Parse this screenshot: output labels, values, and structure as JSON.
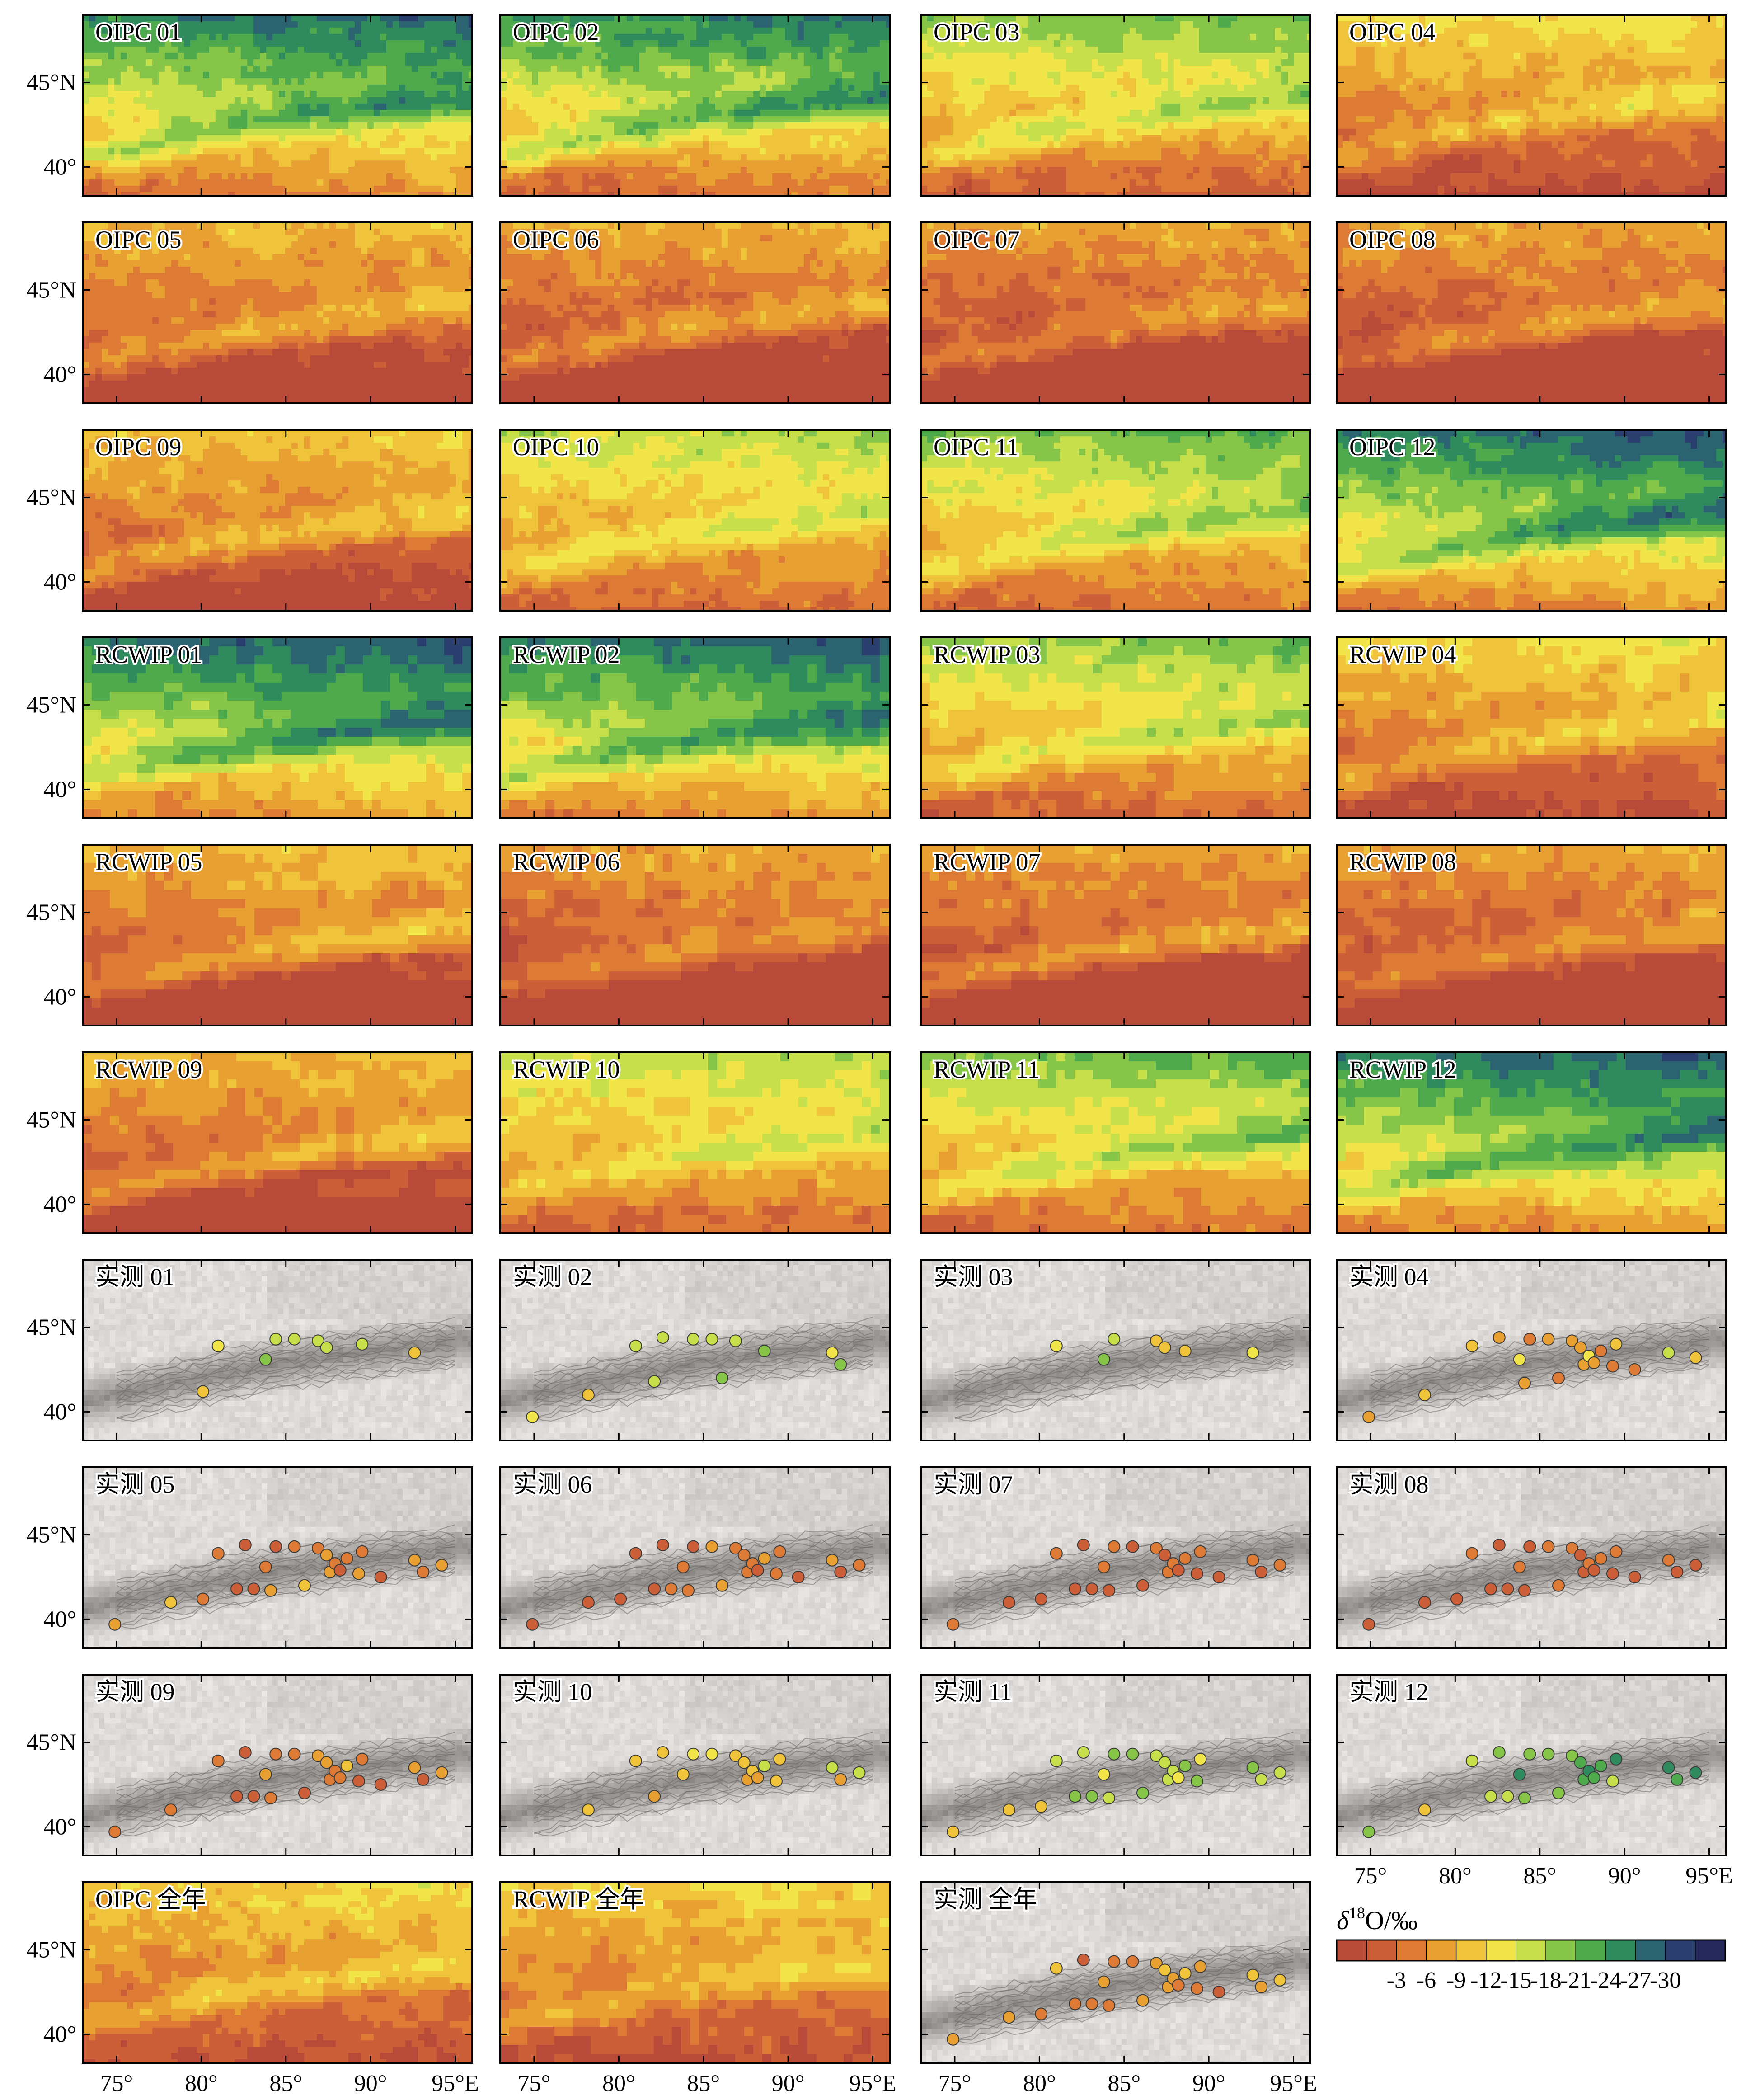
{
  "chart_data": {
    "type": "heatmap",
    "description_units": "δ18O (‰)",
    "region_extent": {
      "lon": [
        73,
        96
      ],
      "lat": [
        38.3,
        49
      ]
    },
    "x_ticks": [
      "75°",
      "80°",
      "85°",
      "90°",
      "95°E"
    ],
    "x_tick_values": [
      75,
      80,
      85,
      90,
      95
    ],
    "y_ticks": [
      "45°N",
      "40°"
    ],
    "y_tick_values": [
      45,
      40
    ],
    "colorbar": {
      "label_italic": "δ",
      "label_sup": "18",
      "label_rest": "O/‰",
      "tick_labels": [
        "-3",
        "-6",
        "-9",
        "-12",
        "-15",
        "-18",
        "-21",
        "-24",
        "-27",
        "-30"
      ],
      "bins": [
        0,
        -3,
        -6,
        -9,
        -12,
        -15,
        -18,
        -21,
        -24,
        -27,
        -30,
        -33
      ],
      "colors": [
        "#b84a3a",
        "#cc5e38",
        "#dd7a35",
        "#e8a032",
        "#efc43a",
        "#f2e54a",
        "#c7df4a",
        "#86c548",
        "#4eaa4c",
        "#2f8a5e",
        "#2b6470",
        "#2a3f6e",
        "#25285a"
      ]
    },
    "station_lonlat": [
      [
        74.9,
        39.7
      ],
      [
        78.2,
        41.0
      ],
      [
        80.1,
        41.2
      ],
      [
        81.0,
        43.9
      ],
      [
        82.1,
        41.8
      ],
      [
        82.6,
        44.4
      ],
      [
        83.1,
        41.8
      ],
      [
        83.8,
        43.1
      ],
      [
        84.1,
        41.7
      ],
      [
        84.4,
        44.3
      ],
      [
        85.5,
        44.3
      ],
      [
        86.1,
        42.0
      ],
      [
        86.9,
        44.2
      ],
      [
        87.4,
        43.8
      ],
      [
        87.6,
        42.8
      ],
      [
        87.9,
        43.3
      ],
      [
        88.2,
        42.9
      ],
      [
        88.6,
        43.6
      ],
      [
        89.3,
        42.7
      ],
      [
        89.5,
        44.0
      ],
      [
        90.6,
        42.5
      ],
      [
        92.6,
        43.5
      ],
      [
        93.1,
        42.8
      ],
      [
        94.2,
        43.2
      ]
    ],
    "panels": [
      {
        "label": "OIPC 01",
        "type": "oipc",
        "months": 1,
        "mean": -19,
        "values": []
      },
      {
        "label": "OIPC 02",
        "type": "oipc",
        "months": 2,
        "mean": -18,
        "values": []
      },
      {
        "label": "OIPC 03",
        "type": "oipc",
        "months": 3,
        "mean": -14,
        "values": []
      },
      {
        "label": "OIPC 04",
        "type": "oipc",
        "months": 4,
        "mean": -9,
        "values": []
      },
      {
        "label": "OIPC 05",
        "type": "oipc",
        "months": 5,
        "mean": -7,
        "values": []
      },
      {
        "label": "OIPC 06",
        "type": "oipc",
        "months": 6,
        "mean": -6,
        "values": []
      },
      {
        "label": "OIPC 07",
        "type": "oipc",
        "months": 7,
        "mean": -5,
        "values": []
      },
      {
        "label": "OIPC 08",
        "type": "oipc",
        "months": 8,
        "mean": -5,
        "values": []
      },
      {
        "label": "OIPC 09",
        "type": "oipc",
        "months": 9,
        "mean": -8,
        "values": []
      },
      {
        "label": "OIPC 10",
        "type": "oipc",
        "months": 10,
        "mean": -13,
        "values": []
      },
      {
        "label": "OIPC 11",
        "type": "oipc",
        "months": 11,
        "mean": -15,
        "values": []
      },
      {
        "label": "OIPC 12",
        "type": "oipc",
        "months": 12,
        "mean": -20,
        "values": []
      },
      {
        "label": "RCWIP 01",
        "type": "rcwip",
        "months": 1,
        "mean": -21,
        "values": []
      },
      {
        "label": "RCWIP 02",
        "type": "rcwip",
        "months": 2,
        "mean": -20,
        "values": []
      },
      {
        "label": "RCWIP 03",
        "type": "rcwip",
        "months": 3,
        "mean": -14,
        "values": []
      },
      {
        "label": "RCWIP 04",
        "type": "rcwip",
        "months": 4,
        "mean": -9,
        "values": []
      },
      {
        "label": "RCWIP 05",
        "type": "rcwip",
        "months": 5,
        "mean": -7,
        "values": []
      },
      {
        "label": "RCWIP 06",
        "type": "rcwip",
        "months": 6,
        "mean": -5,
        "values": []
      },
      {
        "label": "RCWIP 07",
        "type": "rcwip",
        "months": 7,
        "mean": -5,
        "values": []
      },
      {
        "label": "RCWIP 08",
        "type": "rcwip",
        "months": 8,
        "mean": -5,
        "values": []
      },
      {
        "label": "RCWIP 09",
        "type": "rcwip",
        "months": 9,
        "mean": -7,
        "values": []
      },
      {
        "label": "RCWIP 10",
        "type": "rcwip",
        "months": 10,
        "mean": -13,
        "values": []
      },
      {
        "label": "RCWIP 11",
        "type": "rcwip",
        "months": 11,
        "mean": -15,
        "values": []
      },
      {
        "label": "RCWIP 12",
        "type": "rcwip",
        "months": 12,
        "mean": -20,
        "values": []
      },
      {
        "label": "实测 01",
        "type": "obs",
        "values": [
          null,
          null,
          -14,
          -17,
          null,
          null,
          null,
          -23,
          null,
          -19,
          -19,
          null,
          -19,
          -20,
          null,
          null,
          null,
          null,
          null,
          -19,
          null,
          -13,
          null,
          null
        ]
      },
      {
        "label": "实测 02",
        "type": "obs",
        "values": [
          -16,
          -14,
          null,
          -18,
          -18,
          -18,
          null,
          null,
          null,
          -19,
          -19,
          -22,
          -19,
          null,
          null,
          null,
          null,
          -22,
          null,
          null,
          null,
          -17,
          -22,
          null
        ]
      },
      {
        "label": "实测 03",
        "type": "obs",
        "values": [
          null,
          null,
          null,
          -17,
          null,
          null,
          null,
          -21,
          null,
          -18,
          null,
          null,
          -12,
          -14,
          null,
          null,
          null,
          -12,
          null,
          null,
          null,
          -17,
          null,
          null
        ]
      },
      {
        "label": "实测 04",
        "type": "obs",
        "values": [
          -10,
          -13,
          null,
          -12,
          null,
          -9,
          null,
          -15,
          -11,
          -8,
          -9,
          -6,
          -10,
          -10,
          -9,
          -17,
          -11,
          -8,
          -8,
          -13,
          -6,
          -18,
          null,
          -14
        ]
      },
      {
        "label": "实测 05",
        "type": "obs",
        "values": [
          -11,
          -12,
          -8,
          -6,
          -5,
          -5,
          -5,
          -8,
          -10,
          -5,
          -6,
          -12,
          -7,
          -10,
          -11,
          -7,
          -5,
          -6,
          -9,
          -7,
          -5,
          -10,
          -8,
          -10
        ]
      },
      {
        "label": "实测 06",
        "type": "obs",
        "values": [
          -5,
          -5,
          -5,
          -5,
          -5,
          -5,
          -6,
          -8,
          -6,
          -5,
          -9,
          -9,
          -6,
          -6,
          -7,
          -7,
          -5,
          -10,
          -6,
          -8,
          -4,
          -9,
          -4,
          -8
        ]
      },
      {
        "label": "实测 07",
        "type": "obs",
        "values": [
          -6,
          -5,
          -5,
          -6,
          -5,
          -5,
          -5,
          -7,
          -5,
          -6,
          -5,
          -5,
          -6,
          -5,
          -6,
          -7,
          -5,
          -8,
          -5,
          -8,
          -4,
          -6,
          -5,
          -8
        ]
      },
      {
        "label": "实测 08",
        "type": "obs",
        "values": [
          -5,
          -5,
          -5,
          -6,
          -5,
          -5,
          -5,
          -7,
          -5,
          -5,
          -7,
          -6,
          -7,
          -5,
          -5,
          -7,
          -5,
          -8,
          -5,
          -8,
          -4,
          -8,
          -4,
          -5
        ]
      },
      {
        "label": "实测 09",
        "type": "obs",
        "values": [
          -6,
          -6,
          null,
          -8,
          -5,
          -5,
          -5,
          -10,
          -6,
          -6,
          -7,
          -5,
          -10,
          -11,
          -6,
          -6,
          -6,
          -12,
          -5,
          -8,
          -4,
          -10,
          -5,
          -9
        ]
      },
      {
        "label": "实测 10",
        "type": "obs",
        "values": [
          null,
          -12,
          null,
          -13,
          -11,
          -12,
          null,
          -14,
          null,
          -15,
          -17,
          null,
          -14,
          -13,
          -11,
          -12,
          -9,
          -18,
          -13,
          -13,
          null,
          -18,
          -10,
          -19
        ]
      },
      {
        "label": "实测 11",
        "type": "obs",
        "values": [
          -13,
          -14,
          -13,
          -19,
          -21,
          -20,
          -21,
          -17,
          -20,
          -21,
          -21,
          -22,
          -18,
          -19,
          -19,
          -18,
          -17,
          -21,
          -21,
          -17,
          null,
          -21,
          -19,
          -19
        ]
      },
      {
        "label": "实测 12",
        "type": "obs",
        "values": [
          -22,
          -13,
          null,
          -19,
          -19,
          -21,
          -20,
          -28,
          -21,
          -22,
          -22,
          -22,
          -22,
          -25,
          -26,
          -28,
          -26,
          -24,
          -19,
          -27,
          null,
          -28,
          -26,
          -28
        ]
      },
      {
        "label": "OIPC 全年",
        "type": "oipc",
        "months": 0,
        "mean": -9,
        "values": []
      },
      {
        "label": "RCWIP 全年",
        "type": "rcwip",
        "months": 0,
        "mean": -9,
        "values": []
      },
      {
        "label": "实测 全年",
        "type": "obs",
        "values": [
          -10,
          -11,
          -7,
          -14,
          -6,
          -5,
          -6,
          -10,
          -8,
          -7,
          -8,
          -10,
          -10,
          -12,
          -9,
          -11,
          -8,
          -12,
          -8,
          -11,
          -5,
          -12,
          -9,
          -12
        ]
      }
    ]
  }
}
